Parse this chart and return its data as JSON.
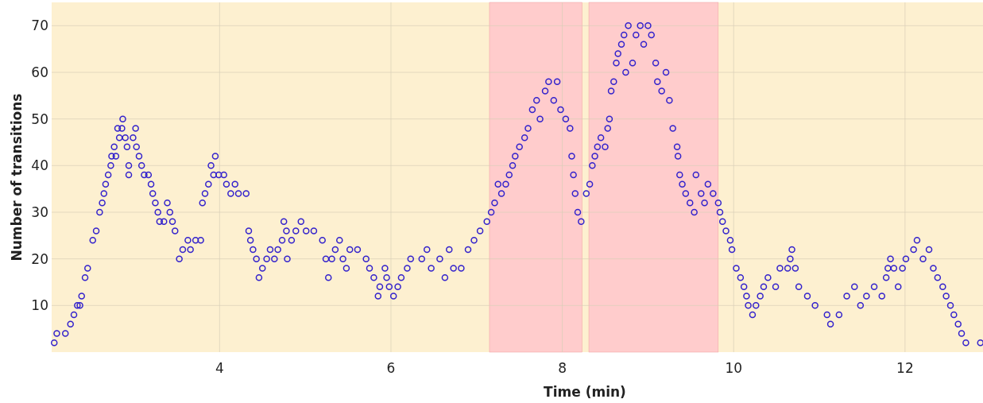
{
  "chart_data": {
    "type": "scatter",
    "xlabel": "Time (min)",
    "ylabel": "Number of transitions",
    "x": [
      2.07,
      2.1,
      2.2,
      2.26,
      2.3,
      2.34,
      2.37,
      2.39,
      2.43,
      2.46,
      2.52,
      2.56,
      2.6,
      2.63,
      2.65,
      2.67,
      2.7,
      2.73,
      2.74,
      2.79,
      2.77,
      2.83,
      2.81,
      2.86,
      2.87,
      2.9,
      2.92,
      2.94,
      2.94,
      2.99,
      3.02,
      3.03,
      3.06,
      3.09,
      3.12,
      3.17,
      3.2,
      3.22,
      3.25,
      3.28,
      3.3,
      3.35,
      3.39,
      3.42,
      3.45,
      3.48,
      3.53,
      3.57,
      3.63,
      3.66,
      3.72,
      3.78,
      3.8,
      3.83,
      3.87,
      3.9,
      3.93,
      3.95,
      3.99,
      4.05,
      4.08,
      4.13,
      4.18,
      4.22,
      4.31,
      4.34,
      4.36,
      4.39,
      4.43,
      4.46,
      4.5,
      4.55,
      4.59,
      4.64,
      4.68,
      4.73,
      4.75,
      4.78,
      4.79,
      4.84,
      4.89,
      4.95,
      5.01,
      5.1,
      5.2,
      5.24,
      5.27,
      5.31,
      5.35,
      5.4,
      5.44,
      5.48,
      5.52,
      5.61,
      5.71,
      5.75,
      5.8,
      5.85,
      5.87,
      5.93,
      5.95,
      5.98,
      6.03,
      6.08,
      6.12,
      6.19,
      6.23,
      6.36,
      6.42,
      6.47,
      6.57,
      6.63,
      6.68,
      6.73,
      6.82,
      6.9,
      6.97,
      7.04,
      7.12,
      7.17,
      7.21,
      7.25,
      7.29,
      7.34,
      7.38,
      7.42,
      7.45,
      7.5,
      7.56,
      7.6,
      7.65,
      7.7,
      7.74,
      7.8,
      7.84,
      7.9,
      7.94,
      7.98,
      8.04,
      8.09,
      8.11,
      8.13,
      8.15,
      8.18,
      8.22,
      8.28,
      8.32,
      8.35,
      8.38,
      8.41,
      8.45,
      8.5,
      8.53,
      8.55,
      8.57,
      8.6,
      8.63,
      8.65,
      8.69,
      8.72,
      8.74,
      8.77,
      8.82,
      8.86,
      8.91,
      8.95,
      9.0,
      9.04,
      9.09,
      9.11,
      9.16,
      9.21,
      9.25,
      9.29,
      9.34,
      9.35,
      9.37,
      9.4,
      9.44,
      9.49,
      9.54,
      9.56,
      9.62,
      9.66,
      9.7,
      9.76,
      9.82,
      9.84,
      9.87,
      9.91,
      9.96,
      9.98,
      10.03,
      10.08,
      10.12,
      10.15,
      10.17,
      10.22,
      10.26,
      10.31,
      10.35,
      10.4,
      10.49,
      10.54,
      10.63,
      10.66,
      10.68,
      10.72,
      10.76,
      10.86,
      10.95,
      11.09,
      11.13,
      11.23,
      11.32,
      11.41,
      11.48,
      11.55,
      11.64,
      11.73,
      11.78,
      11.8,
      11.83,
      11.87,
      11.92,
      11.97,
      12.01,
      12.1,
      12.14,
      12.21,
      12.28,
      12.33,
      12.38,
      12.44,
      12.48,
      12.53,
      12.57,
      12.62,
      12.66,
      12.71,
      12.88
    ],
    "series": [
      {
        "color": "#3322cc",
        "values": [
          2,
          4,
          4,
          6,
          8,
          10,
          10,
          12,
          16,
          18,
          24,
          26,
          30,
          32,
          34,
          36,
          38,
          40,
          42,
          42,
          44,
          46,
          48,
          48,
          50,
          46,
          44,
          40,
          38,
          46,
          48,
          44,
          42,
          40,
          38,
          38,
          36,
          34,
          32,
          30,
          28,
          28,
          32,
          30,
          28,
          26,
          20,
          22,
          24,
          22,
          24,
          24,
          32,
          34,
          36,
          40,
          38,
          42,
          38,
          38,
          36,
          34,
          36,
          34,
          34,
          26,
          24,
          22,
          20,
          16,
          18,
          20,
          22,
          20,
          22,
          24,
          28,
          26,
          20,
          24,
          26,
          28,
          26,
          26,
          24,
          20,
          16,
          20,
          22,
          24,
          20,
          18,
          22,
          22,
          20,
          18,
          16,
          12,
          14,
          18,
          16,
          14,
          12,
          14,
          16,
          18,
          20,
          20,
          22,
          18,
          20,
          16,
          22,
          18,
          18,
          22,
          24,
          26,
          28,
          30,
          32,
          36,
          34,
          36,
          38,
          40,
          42,
          44,
          46,
          48,
          52,
          54,
          50,
          56,
          58,
          54,
          58,
          52,
          50,
          48,
          42,
          38,
          34,
          30,
          28,
          34,
          36,
          40,
          42,
          44,
          46,
          44,
          48,
          50,
          56,
          58,
          62,
          64,
          66,
          68,
          60,
          70,
          62,
          68,
          70,
          66,
          70,
          68,
          62,
          58,
          56,
          60,
          54,
          48,
          44,
          42,
          38,
          36,
          34,
          32,
          30,
          38,
          34,
          32,
          36,
          34,
          32,
          30,
          28,
          26,
          24,
          22,
          18,
          16,
          14,
          12,
          10,
          8,
          10,
          12,
          14,
          16,
          14,
          18,
          18,
          20,
          22,
          18,
          14,
          12,
          10,
          8,
          6,
          8,
          12,
          14,
          10,
          12,
          14,
          12,
          16,
          18,
          20,
          18,
          14,
          18,
          20,
          22,
          24,
          20,
          22,
          18,
          16,
          14,
          12,
          10,
          8,
          6,
          4,
          2,
          2
        ]
      }
    ],
    "xlim": [
      2.04,
      12.91
    ],
    "ylim": [
      0,
      75
    ],
    "xticks": [
      4,
      6,
      8,
      10,
      12
    ],
    "yticks": [
      10,
      20,
      30,
      40,
      50,
      60,
      70
    ],
    "grid": true,
    "marker": "circle",
    "bands": [
      {
        "axis": "x",
        "from": 7.15,
        "to": 8.23,
        "color": "#ffcccc"
      },
      {
        "axis": "x",
        "from": 8.31,
        "to": 9.82,
        "color": "#ffcccc"
      }
    ]
  }
}
